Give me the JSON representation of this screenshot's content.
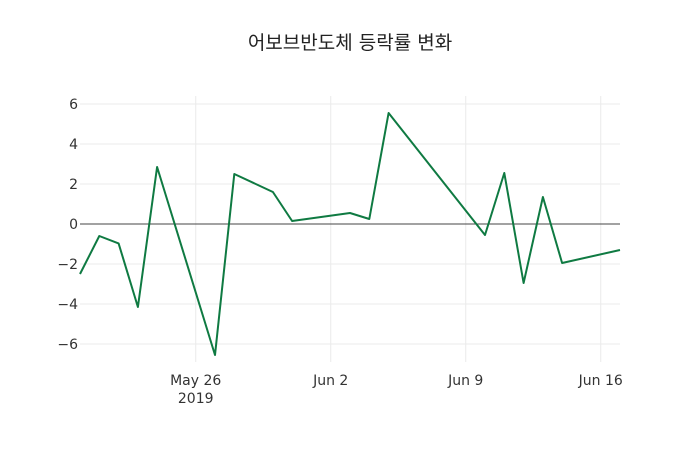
{
  "chart_data": {
    "type": "line",
    "title": "어보브반도체 등락률 변화",
    "xlabel": "",
    "ylabel": "",
    "x": [
      "2019-05-20",
      "2019-05-21",
      "2019-05-22",
      "2019-05-23",
      "2019-05-24",
      "2019-05-27",
      "2019-05-28",
      "2019-05-30",
      "2019-05-31",
      "2019-06-03",
      "2019-06-04",
      "2019-06-05",
      "2019-06-10",
      "2019-06-11",
      "2019-06-12",
      "2019-06-13",
      "2019-06-14",
      "2019-06-17"
    ],
    "series": [
      {
        "name": "등락률",
        "color": "#0f7a42",
        "values": [
          -2.5,
          -0.6,
          -0.97,
          -4.15,
          2.85,
          -6.55,
          2.5,
          1.6,
          0.15,
          0.55,
          0.25,
          5.55,
          -0.55,
          2.55,
          -2.95,
          1.35,
          -1.95,
          -1.3
        ]
      }
    ],
    "yticks": [
      6,
      4,
      2,
      0,
      -2,
      -4,
      -6
    ],
    "ytick_labels": [
      "6",
      "4",
      "2",
      "0",
      "−2",
      "−4",
      "−6"
    ],
    "xticks": [
      {
        "date": "2019-05-26",
        "label": "May 26",
        "sublabel": "2019"
      },
      {
        "date": "2019-06-02",
        "label": "Jun 2",
        "sublabel": ""
      },
      {
        "date": "2019-06-09",
        "label": "Jun 9",
        "sublabel": ""
      },
      {
        "date": "2019-06-16",
        "label": "Jun 16",
        "sublabel": ""
      }
    ],
    "ylim": [
      -7.1,
      6.2
    ],
    "xlim": [
      "2019-05-20",
      "2019-06-17"
    ],
    "grid": true,
    "zero_line": true,
    "legend": false
  }
}
